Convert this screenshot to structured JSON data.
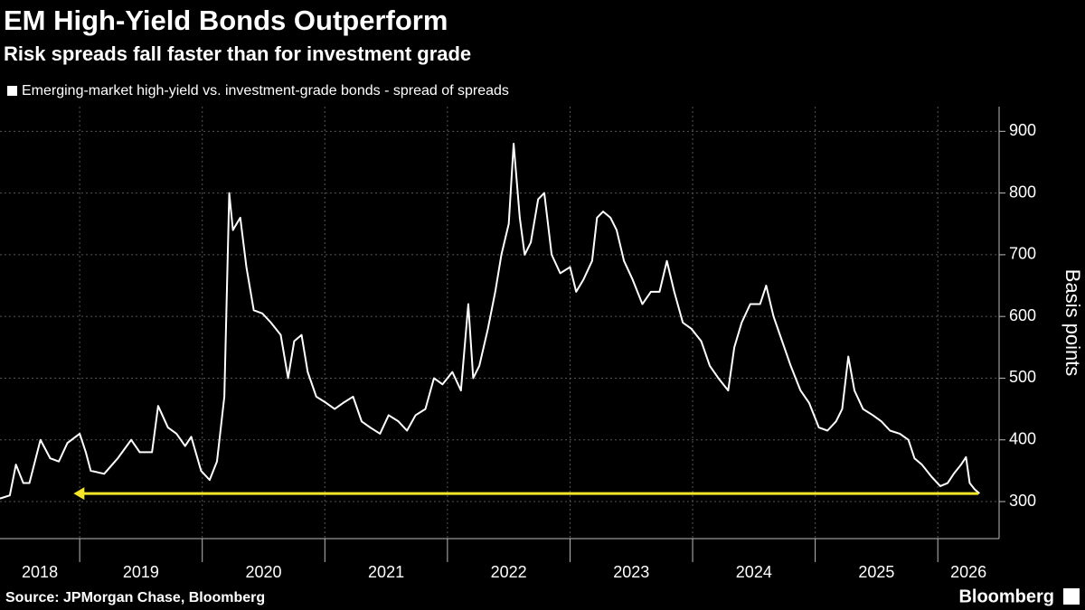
{
  "chart_data": {
    "type": "line",
    "title": "EM High-Yield Bonds Outperform",
    "subtitle": "Risk spreads fall faster than for investment grade",
    "ylabel": "Basis points",
    "source": "Source: JPMorgan Chase, Bloomberg",
    "logo_text": "Bloomberg",
    "xlim": [
      2018.35,
      2026.5
    ],
    "xticks": [
      2018,
      2019,
      2020,
      2021,
      2022,
      2023,
      2024,
      2025,
      2026
    ],
    "ylim": [
      240,
      940
    ],
    "yticks": [
      300,
      400,
      500,
      600,
      700,
      800,
      900
    ],
    "grid": true,
    "x": [
      2018.35,
      2018.43,
      2018.48,
      2018.54,
      2018.59,
      2018.68,
      2018.76,
      2018.83,
      2018.9,
      2019.0,
      2019.05,
      2019.09,
      2019.2,
      2019.31,
      2019.42,
      2019.49,
      2019.59,
      2019.64,
      2019.72,
      2019.79,
      2019.86,
      2019.91,
      2019.99,
      2020.06,
      2020.12,
      2020.18,
      2020.22,
      2020.25,
      2020.31,
      2020.36,
      2020.42,
      2020.49,
      2020.56,
      2020.64,
      2020.7,
      2020.75,
      2020.81,
      2020.86,
      2020.93,
      2021.01,
      2021.08,
      2021.15,
      2021.23,
      2021.3,
      2021.37,
      2021.45,
      2021.52,
      2021.6,
      2021.67,
      2021.74,
      2021.82,
      2021.89,
      2021.96,
      2022.04,
      2022.11,
      2022.17,
      2022.21,
      2022.26,
      2022.33,
      2022.39,
      2022.44,
      2022.5,
      2022.54,
      2022.59,
      2022.63,
      2022.68,
      2022.74,
      2022.79,
      2022.85,
      2022.92,
      2023.0,
      2023.05,
      2023.11,
      2023.18,
      2023.22,
      2023.27,
      2023.33,
      2023.38,
      2023.44,
      2023.51,
      2023.59,
      2023.66,
      2023.73,
      2023.79,
      2023.85,
      2023.92,
      2023.99,
      2024.07,
      2024.14,
      2024.21,
      2024.29,
      2024.34,
      2024.4,
      2024.47,
      2024.55,
      2024.6,
      2024.66,
      2024.73,
      2024.8,
      2024.88,
      2024.95,
      2025.03,
      2025.1,
      2025.17,
      2025.22,
      2025.27,
      2025.32,
      2025.39,
      2025.47,
      2025.54,
      2025.61,
      2025.69,
      2025.76,
      2025.81,
      2025.87,
      2025.95,
      2026.02,
      2026.08,
      2026.13,
      2026.19,
      2026.23,
      2026.26,
      2026.3,
      2026.34
    ],
    "series": [
      {
        "name": "Emerging-market high-yield vs. investment-grade bonds - spread of spreads",
        "color": "#ffffff",
        "values": [
          305,
          310,
          360,
          330,
          330,
          400,
          370,
          365,
          395,
          410,
          380,
          350,
          345,
          370,
          400,
          380,
          380,
          455,
          420,
          410,
          390,
          405,
          350,
          335,
          365,
          470,
          800,
          740,
          760,
          680,
          610,
          605,
          590,
          570,
          500,
          560,
          570,
          510,
          470,
          460,
          450,
          460,
          470,
          430,
          420,
          410,
          440,
          430,
          415,
          440,
          450,
          500,
          490,
          510,
          480,
          620,
          500,
          520,
          580,
          640,
          700,
          750,
          880,
          760,
          700,
          720,
          790,
          800,
          700,
          670,
          680,
          640,
          660,
          690,
          760,
          770,
          760,
          740,
          690,
          660,
          620,
          640,
          640,
          690,
          640,
          590,
          580,
          560,
          520,
          500,
          480,
          550,
          590,
          620,
          620,
          650,
          600,
          560,
          520,
          480,
          460,
          420,
          415,
          430,
          450,
          535,
          480,
          450,
          440,
          430,
          415,
          410,
          400,
          370,
          360,
          340,
          325,
          330,
          345,
          360,
          372,
          330,
          320,
          313
        ]
      }
    ],
    "arrow": {
      "y": 313,
      "x_from": 2026.33,
      "x_to": 2018.95,
      "color": "#f5e62a"
    }
  }
}
